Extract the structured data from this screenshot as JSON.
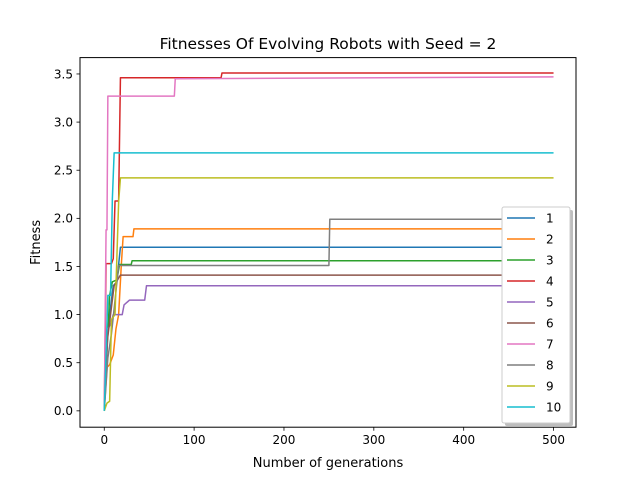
{
  "chart_data": {
    "type": "line",
    "title": "Fitnesses Of Evolving Robots with Seed = 2",
    "xlabel": "Number of generations",
    "ylabel": "Fitness",
    "xlim": [
      -27,
      525
    ],
    "ylim": [
      -0.17,
      3.67
    ],
    "xticks": [
      0,
      100,
      200,
      300,
      400,
      500
    ],
    "yticks": [
      0.0,
      0.5,
      1.0,
      1.5,
      2.0,
      2.5,
      3.0,
      3.5
    ],
    "xtick_labels": [
      "0",
      "100",
      "200",
      "300",
      "400",
      "500"
    ],
    "ytick_labels": [
      "0.0",
      "0.5",
      "1.0",
      "1.5",
      "2.0",
      "2.5",
      "3.0",
      "3.5"
    ],
    "grid": false,
    "legend_position": "center-right",
    "series": [
      {
        "name": "1",
        "color": "#1f77b4",
        "points": [
          [
            0,
            0
          ],
          [
            2,
            0.55
          ],
          [
            4,
            0.85
          ],
          [
            6,
            1.0
          ],
          [
            8,
            1.15
          ],
          [
            10,
            1.3
          ],
          [
            14,
            1.34
          ],
          [
            18,
            1.7
          ],
          [
            500,
            1.7
          ]
        ]
      },
      {
        "name": "2",
        "color": "#ff7f0e",
        "points": [
          [
            0,
            0
          ],
          [
            3,
            0.45
          ],
          [
            6,
            0.48
          ],
          [
            10,
            0.58
          ],
          [
            13,
            0.85
          ],
          [
            16,
            1.0
          ],
          [
            19,
            1.52
          ],
          [
            21,
            1.81
          ],
          [
            32,
            1.81
          ],
          [
            33,
            1.89
          ],
          [
            500,
            1.89
          ]
        ]
      },
      {
        "name": "3",
        "color": "#2ca02c",
        "points": [
          [
            0,
            0
          ],
          [
            3,
            0.6
          ],
          [
            6,
            1.2
          ],
          [
            9,
            1.34
          ],
          [
            14,
            1.36
          ],
          [
            17,
            1.52
          ],
          [
            30,
            1.52
          ],
          [
            31,
            1.56
          ],
          [
            500,
            1.56
          ]
        ]
      },
      {
        "name": "4",
        "color": "#d62728",
        "points": [
          [
            0,
            0
          ],
          [
            2,
            1.53
          ],
          [
            8,
            1.53
          ],
          [
            10,
            1.58
          ],
          [
            12,
            2.18
          ],
          [
            16,
            2.18
          ],
          [
            18,
            3.46
          ],
          [
            130,
            3.46
          ],
          [
            131,
            3.51
          ],
          [
            500,
            3.51
          ]
        ]
      },
      {
        "name": "5",
        "color": "#9467bd",
        "points": [
          [
            0,
            0
          ],
          [
            4,
            0.85
          ],
          [
            7,
            0.9
          ],
          [
            10,
            1.0
          ],
          [
            20,
            1.0
          ],
          [
            22,
            1.1
          ],
          [
            28,
            1.15
          ],
          [
            45,
            1.15
          ],
          [
            47,
            1.3
          ],
          [
            500,
            1.3
          ]
        ]
      },
      {
        "name": "6",
        "color": "#8c564b",
        "points": [
          [
            0,
            0
          ],
          [
            3,
            0.7
          ],
          [
            7,
            1.0
          ],
          [
            11,
            1.3
          ],
          [
            16,
            1.38
          ],
          [
            18,
            1.41
          ],
          [
            500,
            1.41
          ]
        ]
      },
      {
        "name": "7",
        "color": "#e377c2",
        "points": [
          [
            0,
            0
          ],
          [
            2,
            1.88
          ],
          [
            3,
            1.88
          ],
          [
            4,
            3.27
          ],
          [
            78,
            3.27
          ],
          [
            79,
            3.45
          ],
          [
            500,
            3.47
          ]
        ]
      },
      {
        "name": "8",
        "color": "#7f7f7f",
        "points": [
          [
            0,
            0
          ],
          [
            4,
            0.55
          ],
          [
            8,
            0.8
          ],
          [
            12,
            1.15
          ],
          [
            16,
            1.51
          ],
          [
            250,
            1.51
          ],
          [
            251,
            1.99
          ],
          [
            500,
            1.99
          ]
        ]
      },
      {
        "name": "9",
        "color": "#bcbd22",
        "points": [
          [
            0,
            0
          ],
          [
            3,
            0.08
          ],
          [
            6,
            0.1
          ],
          [
            8,
            0.95
          ],
          [
            12,
            1.0
          ],
          [
            16,
            2.17
          ],
          [
            18,
            2.42
          ],
          [
            500,
            2.42
          ]
        ]
      },
      {
        "name": "10",
        "color": "#17becf",
        "points": [
          [
            0,
            0
          ],
          [
            2,
            0.6
          ],
          [
            4,
            1.2
          ],
          [
            7,
            1.2
          ],
          [
            9,
            2.2
          ],
          [
            11,
            2.68
          ],
          [
            500,
            2.68
          ]
        ]
      }
    ]
  }
}
